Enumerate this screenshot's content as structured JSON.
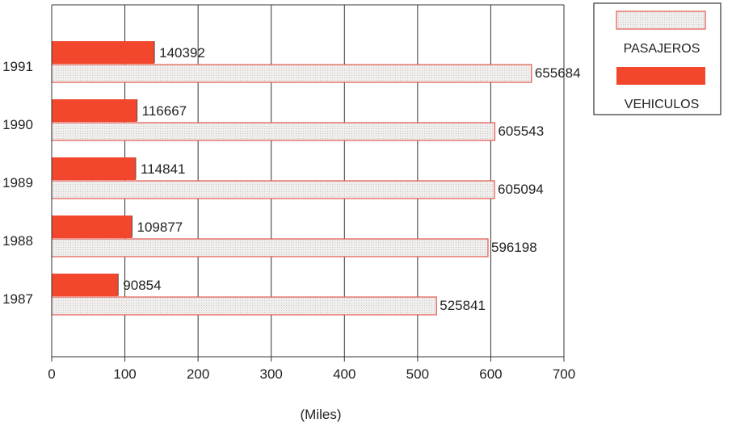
{
  "chart_data": {
    "type": "bar",
    "orientation": "horizontal",
    "categories": [
      "1991",
      "1990",
      "1989",
      "1988",
      "1987"
    ],
    "series": [
      {
        "name": "VEHICULOS",
        "values": [
          140392,
          116667,
          114841,
          109877,
          90854
        ],
        "color": "#f2472c"
      },
      {
        "name": "PASAJEROS",
        "values": [
          655684,
          605543,
          605094,
          596198,
          525841
        ],
        "color": "#e4e0e0"
      }
    ],
    "data_labels": {
      "VEHICULOS": [
        "140392",
        "116667",
        "114841",
        "109877",
        "90854"
      ],
      "PASAJEROS": [
        "655684",
        "605543",
        "605094",
        "596198",
        "525841"
      ]
    },
    "x_ticks": [
      "0",
      "100",
      "200",
      "300",
      "400",
      "500",
      "600",
      "700"
    ],
    "xlabel": "(Miles)",
    "xlim": [
      0,
      700000
    ],
    "grid": true,
    "legend_position": "top-right"
  }
}
